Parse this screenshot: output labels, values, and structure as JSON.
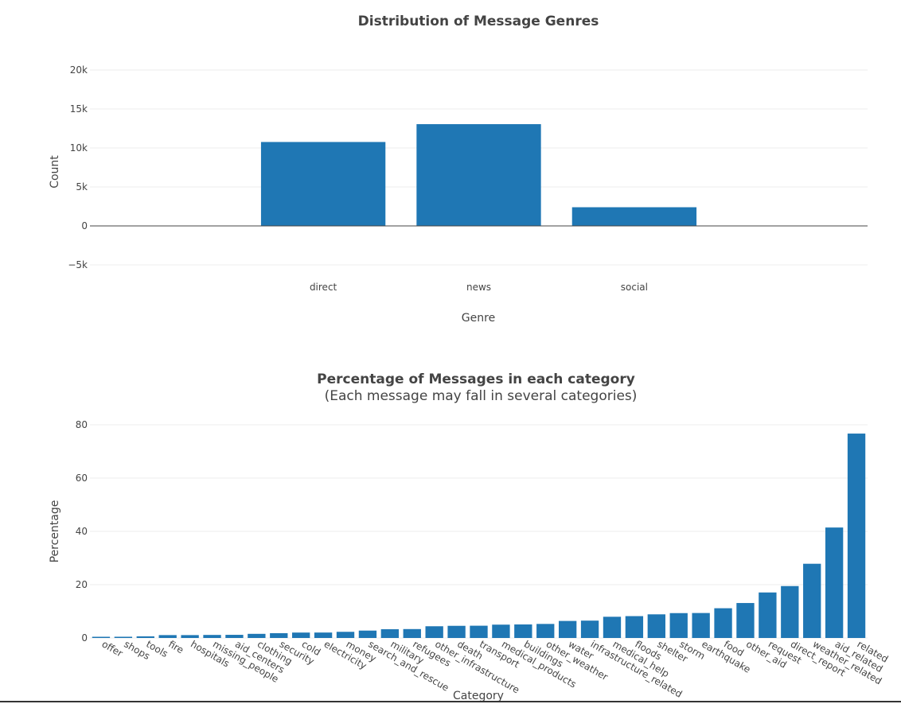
{
  "chart_data": [
    {
      "type": "bar",
      "title": "Distribution of Message Genres",
      "xlabel": "Genre",
      "ylabel": "Count",
      "categories": [
        "direct",
        "news",
        "social"
      ],
      "values": [
        10766,
        13054,
        2396
      ],
      "ylim": [
        -6200,
        21000
      ],
      "yticks": [
        -5000,
        0,
        5000,
        10000,
        15000,
        20000
      ],
      "ytick_labels": [
        "−5k",
        "0",
        "5k",
        "10k",
        "15k",
        "20k"
      ],
      "xlim": [
        -1.5,
        3.5
      ],
      "grid": true,
      "color": "#1f77b4"
    },
    {
      "type": "bar",
      "title": "Percentage of Messages in each category",
      "subtitle": "(Each message may fall in several categories)",
      "xlabel": "Category",
      "ylabel": "Percentage",
      "categories": [
        "offer",
        "shops",
        "tools",
        "fire",
        "hospitals",
        "missing_people",
        "aid_centers",
        "clothing",
        "security",
        "cold",
        "electricity",
        "money",
        "search_and_rescue",
        "military",
        "refugees",
        "other_infrastructure",
        "death",
        "transport",
        "medical_products",
        "buildings",
        "other_weather",
        "water",
        "infrastructure_related",
        "medical_help",
        "floods",
        "shelter",
        "storm",
        "earthquake",
        "food",
        "other_aid",
        "request",
        "direct_report",
        "weather_related",
        "aid_related",
        "related"
      ],
      "values": [
        0.45,
        0.46,
        0.61,
        1.08,
        1.08,
        1.14,
        1.18,
        1.55,
        1.8,
        2.03,
        2.04,
        2.31,
        2.77,
        3.28,
        3.34,
        4.4,
        4.56,
        4.6,
        5.0,
        5.08,
        5.27,
        6.39,
        6.51,
        7.96,
        8.2,
        8.87,
        9.33,
        9.37,
        11.16,
        13.12,
        17.08,
        19.48,
        27.85,
        41.45,
        76.7
      ]
    }
  ]
}
